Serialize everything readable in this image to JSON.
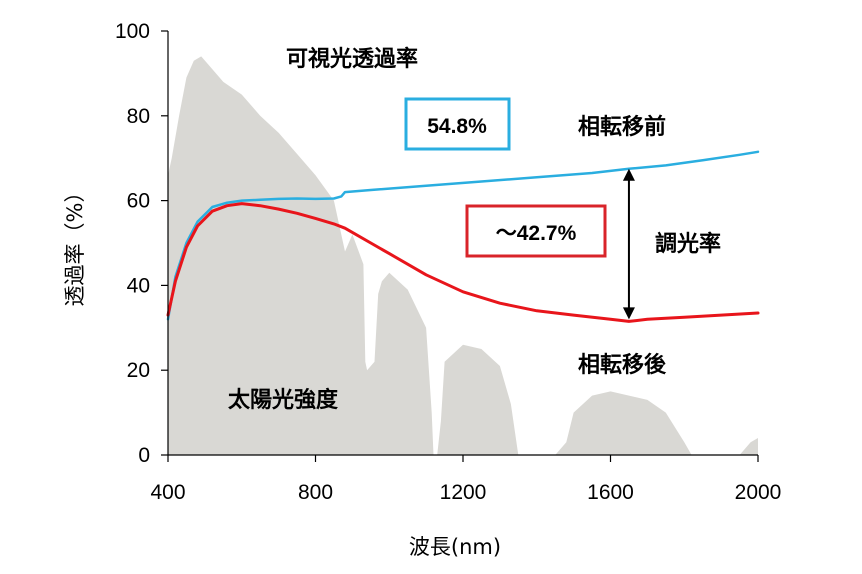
{
  "chart_data": {
    "type": "line",
    "xlabel": "波長(nm)",
    "ylabel": "透過率（%）",
    "xlim": [
      400,
      2000
    ],
    "ylim": [
      0,
      100
    ],
    "x_ticks": [
      "400",
      "800",
      "1200",
      "1600",
      "2000"
    ],
    "y_ticks": [
      "0",
      "20",
      "40",
      "60",
      "80",
      "100"
    ],
    "grid": false,
    "series": [
      {
        "name": "相転移前",
        "color": "#2aaee0",
        "x": [
          400,
          420,
          450,
          480,
          520,
          560,
          600,
          650,
          700,
          750,
          800,
          850,
          870,
          880,
          950,
          1100,
          1250,
          1400,
          1550,
          1650,
          1750,
          1850,
          1950,
          2000
        ],
        "y": [
          32,
          42,
          50,
          55,
          58.5,
          59.5,
          60,
          60.2,
          60.4,
          60.5,
          60.4,
          60.5,
          61,
          62,
          62.5,
          63.5,
          64.5,
          65.5,
          66.5,
          67.5,
          68.3,
          69.5,
          70.8,
          71.5
        ]
      },
      {
        "name": "相転移後",
        "color": "#e8151b",
        "x": [
          400,
          420,
          450,
          480,
          520,
          560,
          600,
          650,
          700,
          750,
          800,
          850,
          880,
          950,
          1000,
          1100,
          1200,
          1300,
          1400,
          1500,
          1600,
          1650,
          1700,
          1800,
          1900,
          2000
        ],
        "y": [
          33,
          41,
          49,
          54,
          57.5,
          58.8,
          59.3,
          58.8,
          58,
          57,
          55.8,
          54.5,
          53.5,
          50,
          47.5,
          42.5,
          38.5,
          35.8,
          34,
          33,
          32,
          31.5,
          32,
          32.5,
          33,
          33.5
        ]
      }
    ],
    "background_area": {
      "name": "太陽光強度",
      "color": "#d9d8d4",
      "x": [
        400,
        410,
        430,
        450,
        470,
        490,
        510,
        550,
        600,
        650,
        700,
        750,
        800,
        850,
        880,
        900,
        930,
        935,
        940,
        960,
        970,
        980,
        1000,
        1050,
        1100,
        1115,
        1120,
        1130,
        1140,
        1150,
        1200,
        1250,
        1300,
        1330,
        1350,
        1360,
        1400,
        1450,
        1480,
        1500,
        1550,
        1600,
        1700,
        1750,
        1800,
        1820,
        1850,
        1950,
        1980,
        2000
      ],
      "y": [
        66,
        70,
        80,
        89,
        93,
        94,
        92,
        88,
        85,
        80,
        76,
        71,
        66,
        60,
        48,
        52,
        45,
        22,
        20,
        22,
        38,
        41,
        43,
        39,
        30,
        10,
        0,
        0,
        8,
        22,
        26,
        25,
        21,
        12,
        0,
        0,
        0,
        0,
        3,
        10,
        14,
        15,
        13,
        10,
        3,
        0,
        0,
        0,
        3,
        4
      ]
    },
    "annotations": {
      "visible_label": "可視光透過率",
      "before_label": "相転移前",
      "after_label": "相転移後",
      "modulation_label": "調光率",
      "solar_label": "太陽光強度",
      "box_visible_value": "54.8%",
      "box_modulation_value": "～42.7%",
      "box_visible_color": "#2aaee0",
      "box_modulation_color": "#d9242a",
      "arrow_x": 1650
    }
  }
}
